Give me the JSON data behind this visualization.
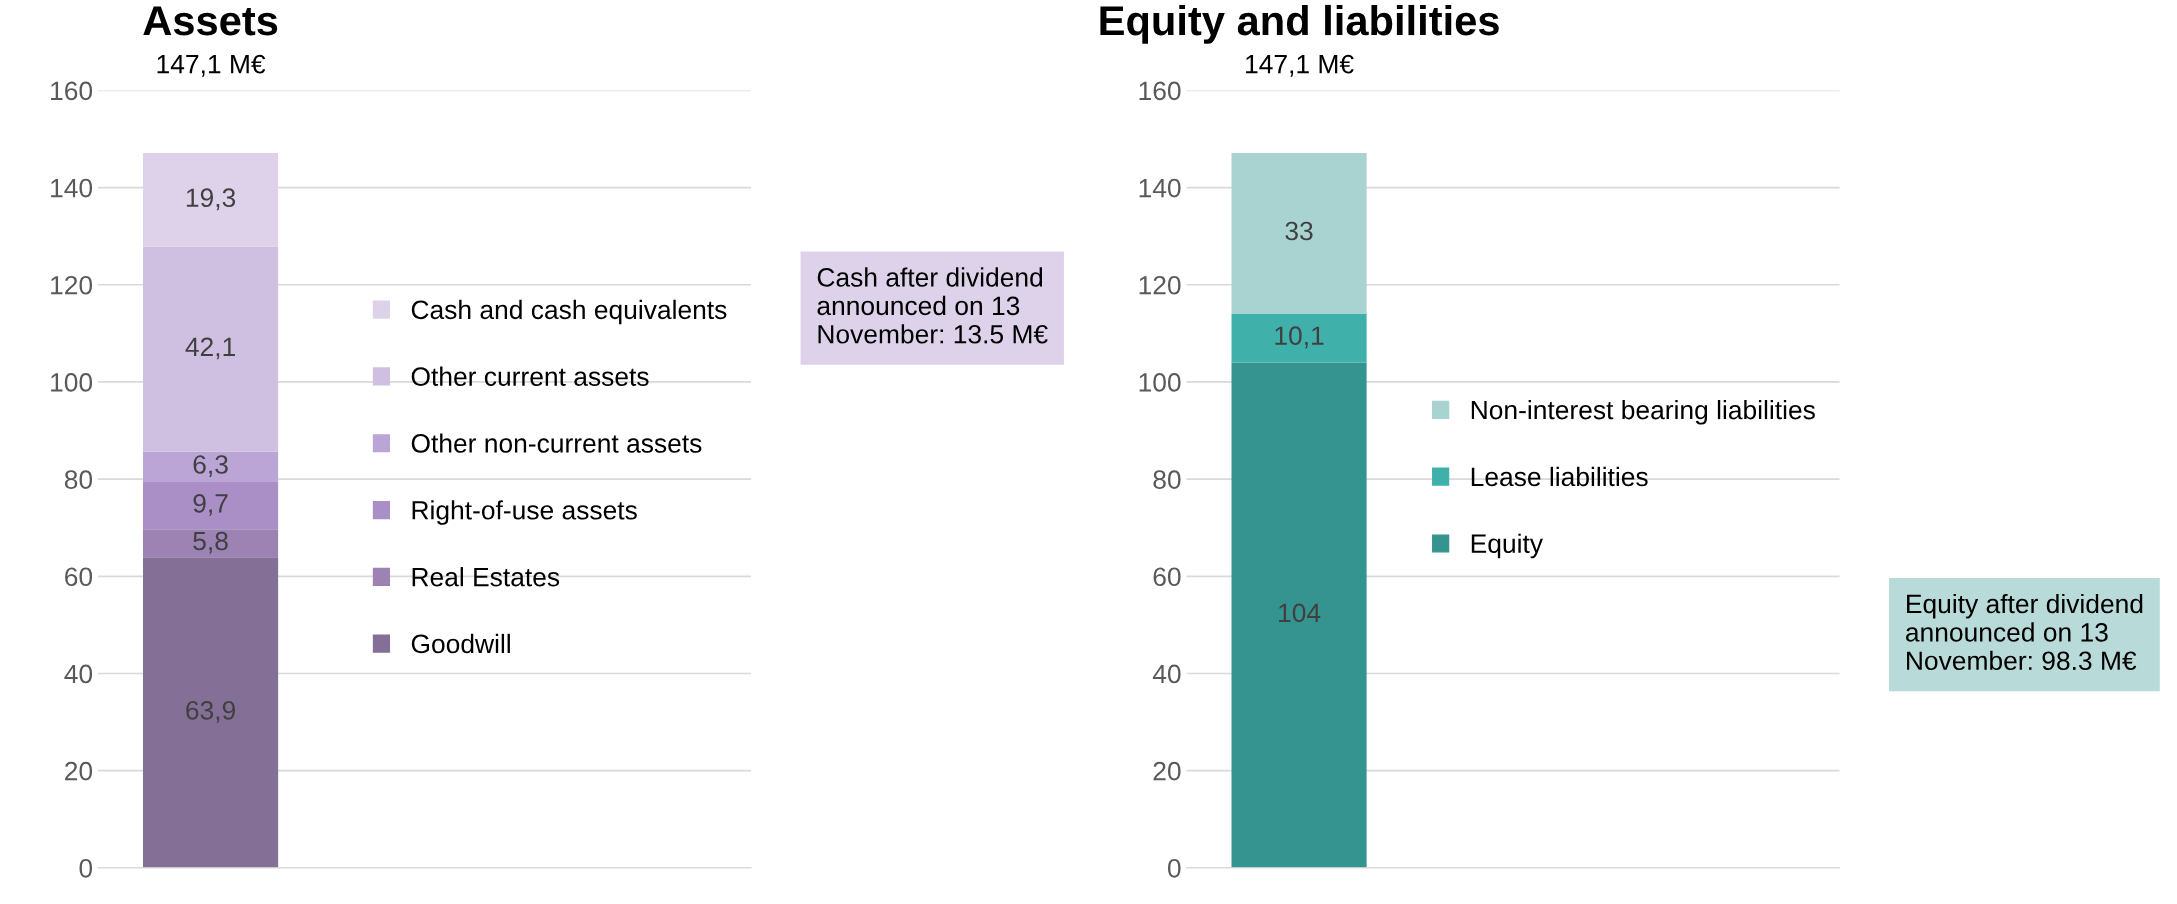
{
  "chart_data": [
    {
      "type": "bar",
      "stacked": true,
      "title": "Assets",
      "subtitle": "147,1 M€",
      "categories": [
        null
      ],
      "ylim": [
        0,
        160
      ],
      "yticks": [
        0,
        20,
        40,
        60,
        80,
        100,
        120,
        140,
        160
      ],
      "grid": "y",
      "legend": "right",
      "data_labels": true,
      "series": [
        {
          "name": "Goodwill",
          "color": "#846f97",
          "values": [
            63.9
          ],
          "value_labels": [
            "63,9"
          ]
        },
        {
          "name": "Real Estates",
          "color": "#9c83b4",
          "values": [
            5.8
          ],
          "value_labels": [
            "5,8"
          ]
        },
        {
          "name": "Right-of-use assets",
          "color": "#aa8fc7",
          "values": [
            9.7
          ],
          "value_labels": [
            "9,7"
          ]
        },
        {
          "name": "Other non-current assets",
          "color": "#bba5d6",
          "values": [
            6.3
          ],
          "value_labels": [
            "6,3"
          ]
        },
        {
          "name": "Other current assets",
          "color": "#cfc0e1",
          "values": [
            42.1
          ],
          "value_labels": [
            "42,1"
          ]
        },
        {
          "name": "Cash and cash equivalents",
          "color": "#ddd2e9",
          "values": [
            19.3
          ],
          "value_labels": [
            "19,3"
          ]
        }
      ],
      "annotations": [
        "Cash after dividend announced on 13 November: 13.5 M€"
      ]
    },
    {
      "type": "bar",
      "stacked": true,
      "title": "Equity and liabilities",
      "subtitle": "147,1 M€",
      "categories": [
        null
      ],
      "ylim": [
        0,
        160
      ],
      "yticks": [
        0,
        20,
        40,
        60,
        80,
        100,
        120,
        140,
        160
      ],
      "grid": "y",
      "legend": "right",
      "data_labels": true,
      "series": [
        {
          "name": "Equity",
          "color": "#359490",
          "values": [
            104
          ],
          "value_labels": [
            "104"
          ]
        },
        {
          "name": "Lease liabilities",
          "color": "#40b0ab",
          "values": [
            10.1
          ],
          "value_labels": [
            "10,1"
          ]
        },
        {
          "name": "Non-interest bearing liabilities",
          "color": "#a8d3d1",
          "values": [
            33
          ],
          "value_labels": [
            "33"
          ]
        }
      ],
      "annotations": [
        "Equity after dividend announced on 13 November: 98.3 M€"
      ]
    }
  ]
}
